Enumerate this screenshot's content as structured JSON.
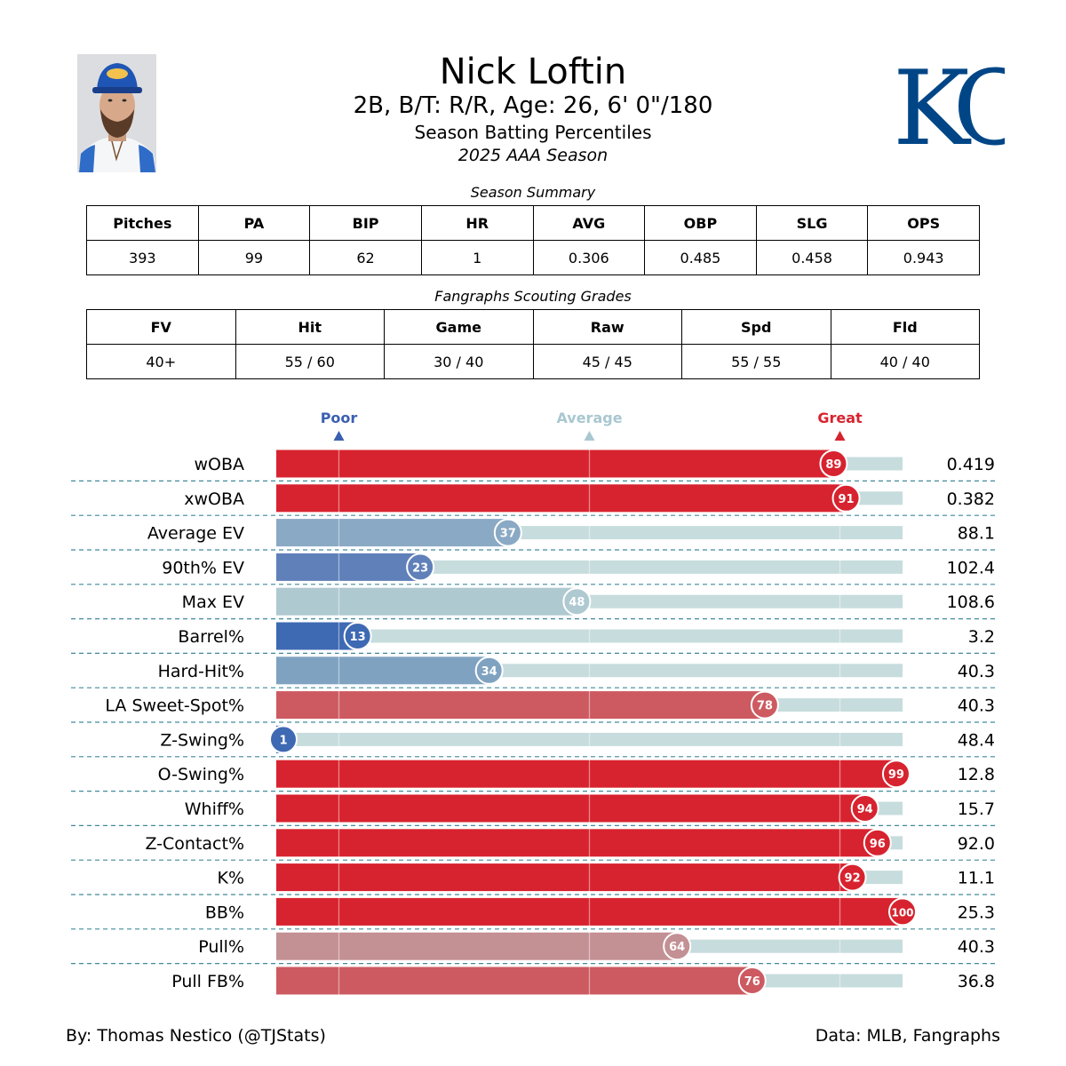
{
  "header": {
    "name": "Nick Loftin",
    "bio": "2B, B/T: R/R, Age: 26, 6' 0\"/180",
    "subtitle": "Season Batting Percentiles",
    "season": "2025 AAA Season",
    "team_logo_text": "KC",
    "logo_color": "#004687"
  },
  "summary": {
    "title": "Season Summary",
    "headers": [
      "Pitches",
      "PA",
      "BIP",
      "HR",
      "AVG",
      "OBP",
      "SLG",
      "OPS"
    ],
    "values": [
      "393",
      "99",
      "62",
      "1",
      "0.306",
      "0.485",
      "0.458",
      "0.943"
    ]
  },
  "grades": {
    "title": "Fangraphs Scouting Grades",
    "headers": [
      "FV",
      "Hit",
      "Game",
      "Raw",
      "Spd",
      "Fld"
    ],
    "values": [
      "40+",
      "55 / 60",
      "30 / 40",
      "45 / 45",
      "55 / 55",
      "40 / 40"
    ]
  },
  "chart_data": {
    "type": "bar",
    "orientation": "horizontal",
    "xlim": [
      0,
      100
    ],
    "reference_markers": [
      {
        "label": "Poor",
        "value": 10,
        "color": "#3b5fb0"
      },
      {
        "label": "Average",
        "value": 50,
        "color": "#a9c7d0"
      },
      {
        "label": "Great",
        "value": 90,
        "color": "#d7232f"
      }
    ],
    "track_color": "#c7dcdd",
    "categories": [
      "wOBA",
      "xwOBA",
      "Average EV",
      "90th% EV",
      "Max EV",
      "Barrel%",
      "Hard-Hit%",
      "LA Sweet-Spot%",
      "Z-Swing%",
      "O-Swing%",
      "Whiff%",
      "Z-Contact%",
      "K%",
      "BB%",
      "Pull%",
      "Pull FB%"
    ],
    "percentiles": [
      89,
      91,
      37,
      23,
      48,
      13,
      34,
      78,
      1,
      99,
      94,
      96,
      92,
      100,
      64,
      76
    ],
    "stat_values": [
      "0.419",
      "0.382",
      "88.1",
      "102.4",
      "108.6",
      "3.2",
      "40.3",
      "40.3",
      "48.4",
      "12.8",
      "15.7",
      "92.0",
      "11.1",
      "25.3",
      "40.3",
      "36.8"
    ],
    "colors": [
      "#d7232f",
      "#d7232f",
      "#8aa9c4",
      "#5f80b9",
      "#afc9d1",
      "#3e69b3",
      "#7fa2c1",
      "#cd5a61",
      "#3e69b3",
      "#d7232f",
      "#d7232f",
      "#d7232f",
      "#d7232f",
      "#d7232f",
      "#c39094",
      "#cd5a61"
    ]
  },
  "footer": {
    "credit": "By: Thomas Nestico (@TJStats)",
    "source": "Data: MLB, Fangraphs"
  }
}
